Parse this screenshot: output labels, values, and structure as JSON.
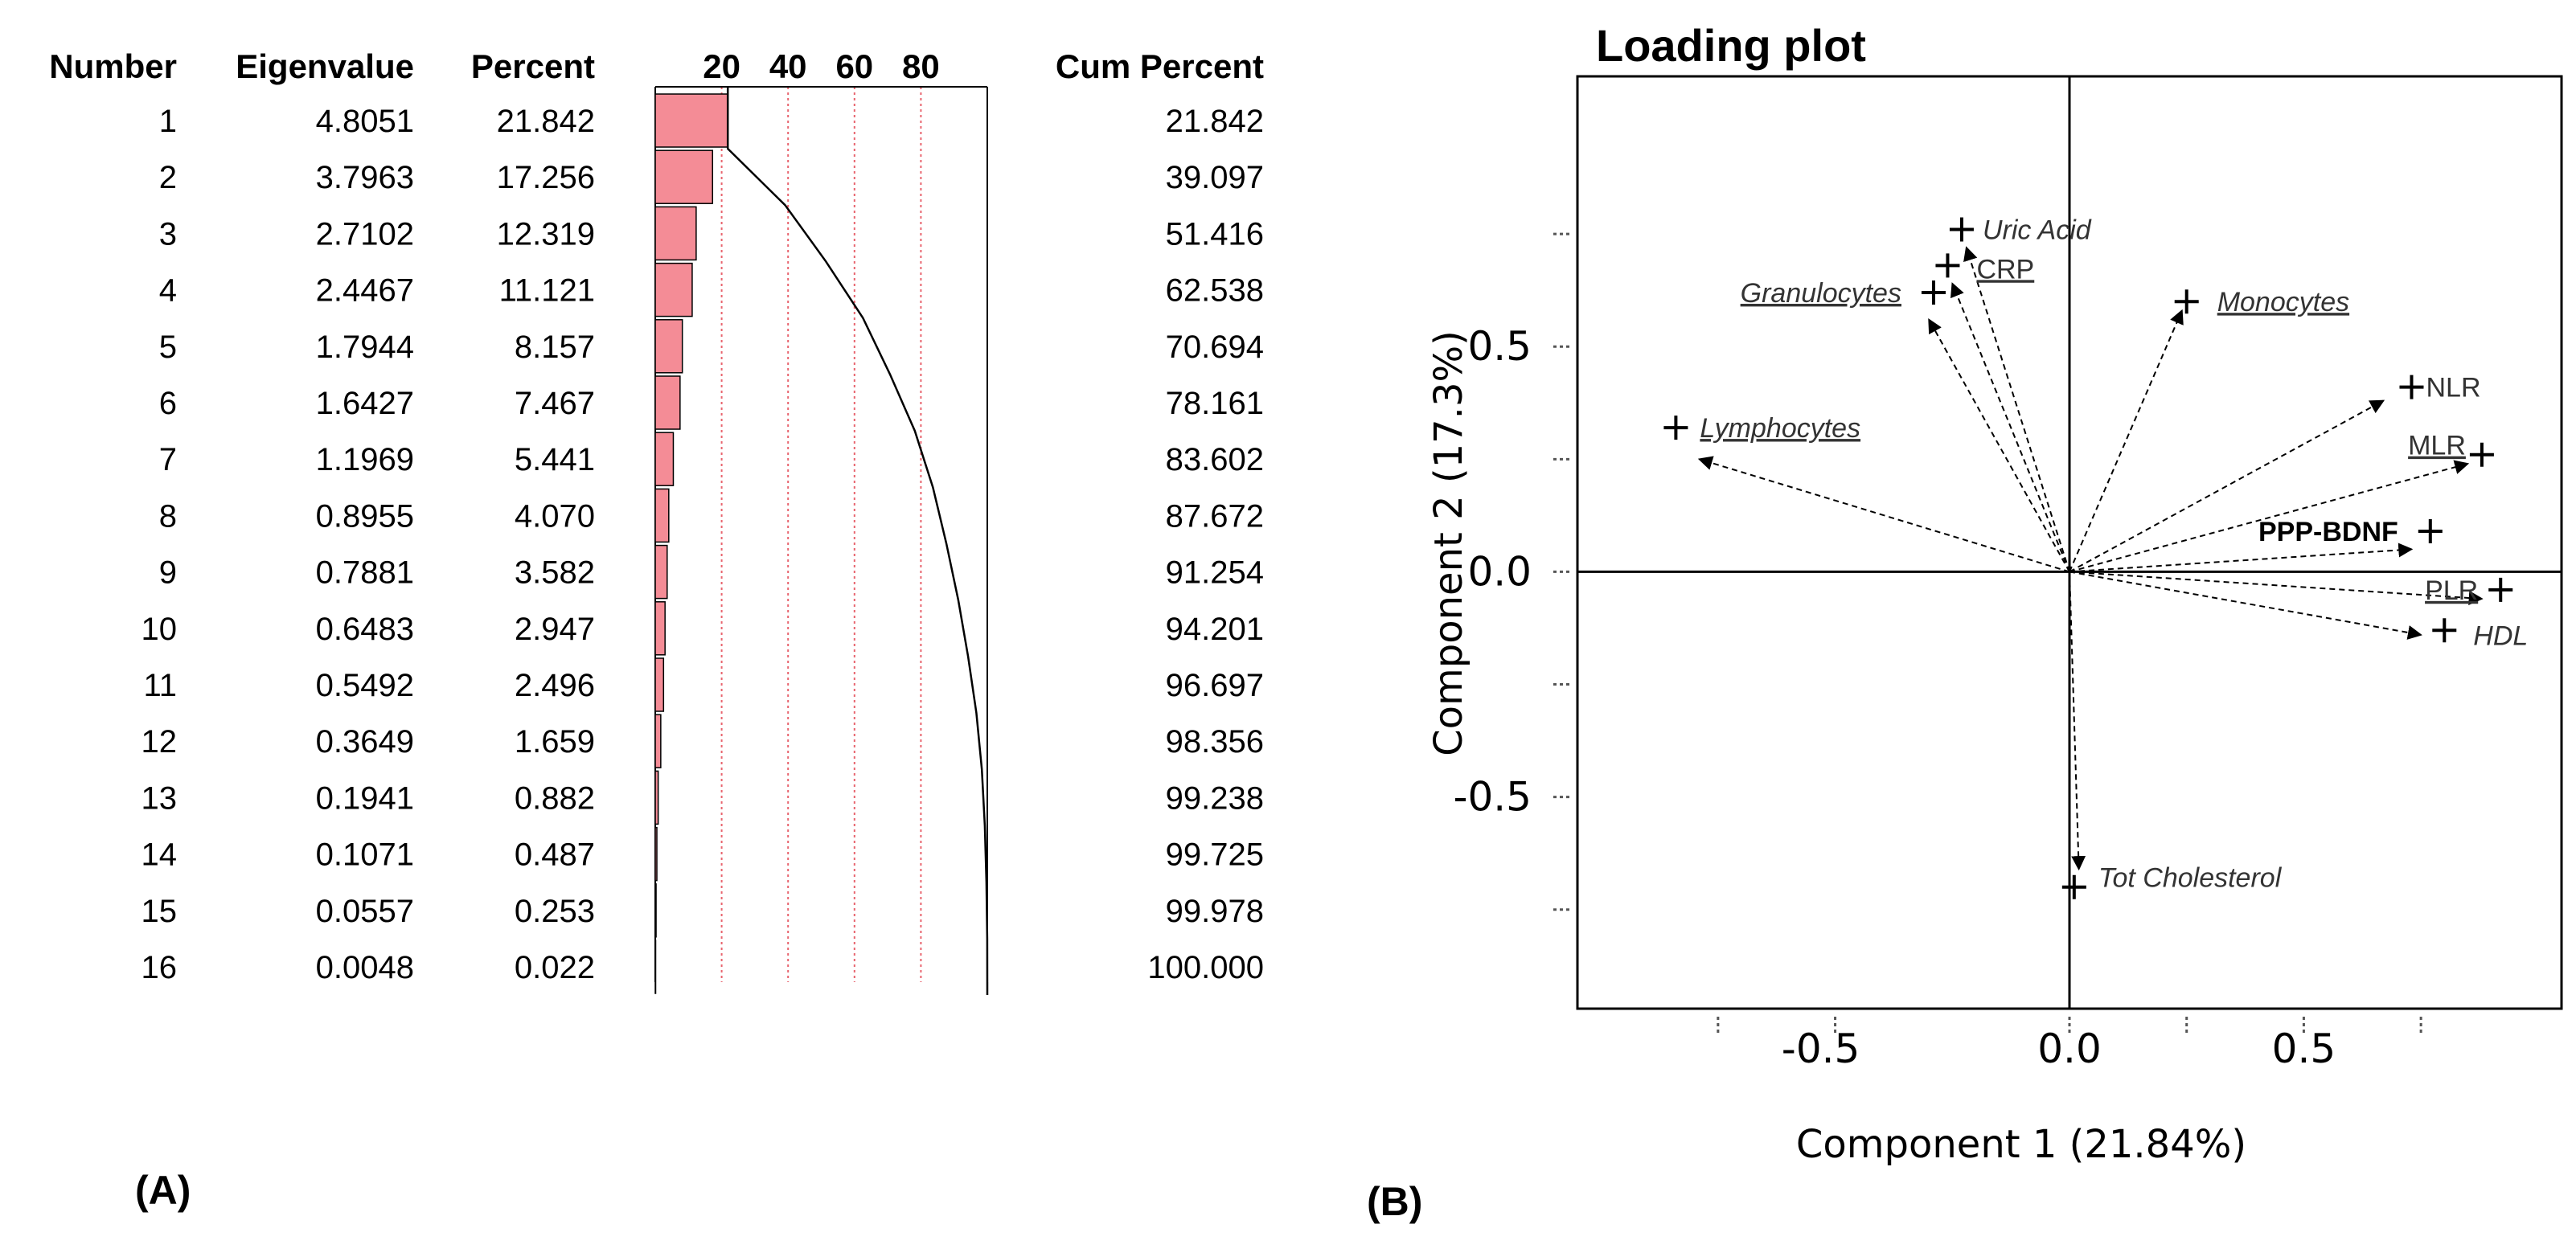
{
  "panel_labels": {
    "a": "(A)",
    "b": "(B)"
  },
  "chart_data": [
    {
      "type": "table",
      "title": "",
      "columns": {
        "number": "Number",
        "eigenvalue": "Eigenvalue",
        "percent": "Percent",
        "cum_percent": "Cum Percent"
      },
      "bar_axis_ticks": [
        "20",
        "40",
        "60",
        "80"
      ],
      "bar_axis_range": [
        0,
        100
      ],
      "rows": [
        {
          "number": "1",
          "eigenvalue": "4.8051",
          "percent": "21.842",
          "cum_percent": "21.842"
        },
        {
          "number": "2",
          "eigenvalue": "3.7963",
          "percent": "17.256",
          "cum_percent": "39.097"
        },
        {
          "number": "3",
          "eigenvalue": "2.7102",
          "percent": "12.319",
          "cum_percent": "51.416"
        },
        {
          "number": "4",
          "eigenvalue": "2.4467",
          "percent": "11.121",
          "cum_percent": "62.538"
        },
        {
          "number": "5",
          "eigenvalue": "1.7944",
          "percent": "8.157",
          "cum_percent": "70.694"
        },
        {
          "number": "6",
          "eigenvalue": "1.6427",
          "percent": "7.467",
          "cum_percent": "78.161"
        },
        {
          "number": "7",
          "eigenvalue": "1.1969",
          "percent": "5.441",
          "cum_percent": "83.602"
        },
        {
          "number": "8",
          "eigenvalue": "0.8955",
          "percent": "4.070",
          "cum_percent": "87.672"
        },
        {
          "number": "9",
          "eigenvalue": "0.7881",
          "percent": "3.582",
          "cum_percent": "91.254"
        },
        {
          "number": "10",
          "eigenvalue": "0.6483",
          "percent": "2.947",
          "cum_percent": "94.201"
        },
        {
          "number": "11",
          "eigenvalue": "0.5492",
          "percent": "2.496",
          "cum_percent": "96.697"
        },
        {
          "number": "12",
          "eigenvalue": "0.3649",
          "percent": "1.659",
          "cum_percent": "98.356"
        },
        {
          "number": "13",
          "eigenvalue": "0.1941",
          "percent": "0.882",
          "cum_percent": "99.238"
        },
        {
          "number": "14",
          "eigenvalue": "0.1071",
          "percent": "0.487",
          "cum_percent": "99.725"
        },
        {
          "number": "15",
          "eigenvalue": "0.0557",
          "percent": "0.253",
          "cum_percent": "99.978"
        },
        {
          "number": "16",
          "eigenvalue": "0.0048",
          "percent": "0.022",
          "cum_percent": "100.000"
        }
      ],
      "bar_color": "#f48c96",
      "grid_color": "#e8646e"
    },
    {
      "type": "scatter",
      "title": "Loading plot",
      "xlabel": "Component 1 (21.84%)",
      "ylabel": "Component 2 (17.3%)",
      "xlim": [
        -1.05,
        1.05
      ],
      "ylim": [
        -0.97,
        1.1
      ],
      "xticks": [
        "-0.5",
        "0.0",
        "0.5"
      ],
      "yticks": [
        "0.5",
        "0.0",
        "-0.5"
      ],
      "xtick_values": [
        -0.5,
        0.0,
        0.5
      ],
      "ytick_values": [
        0.5,
        0.0,
        -0.5
      ],
      "points": [
        {
          "label": "Uric Acid",
          "x": -0.23,
          "y": 0.76,
          "style": "italic"
        },
        {
          "label": "CRP",
          "x": -0.26,
          "y": 0.68,
          "style": "underline"
        },
        {
          "label": "Granulocytes",
          "x": -0.29,
          "y": 0.62,
          "style": "italic-underline"
        },
        {
          "label": "Monocytes",
          "x": 0.25,
          "y": 0.6,
          "style": "italic-underline"
        },
        {
          "label": "NLR",
          "x": 0.73,
          "y": 0.41,
          "style": "normal"
        },
        {
          "label": "Lymphocytes",
          "x": -0.84,
          "y": 0.32,
          "style": "italic-underline"
        },
        {
          "label": "MLR",
          "x": 0.88,
          "y": 0.26,
          "style": "underline"
        },
        {
          "label": "PPP-BDNF",
          "x": 0.77,
          "y": 0.09,
          "style": "bold"
        },
        {
          "label": "PLR",
          "x": 0.92,
          "y": -0.04,
          "style": "underline"
        },
        {
          "label": "HDL",
          "x": 0.8,
          "y": -0.13,
          "style": "italic"
        },
        {
          "label": "Tot Cholesterol",
          "x": 0.01,
          "y": -0.7,
          "style": "italic"
        }
      ],
      "arrow_tips": [
        {
          "x": -0.22,
          "y": 0.72
        },
        {
          "x": -0.25,
          "y": 0.64
        },
        {
          "x": -0.3,
          "y": 0.56
        },
        {
          "x": 0.24,
          "y": 0.58
        },
        {
          "x": 0.67,
          "y": 0.38
        },
        {
          "x": -0.79,
          "y": 0.25
        },
        {
          "x": 0.85,
          "y": 0.24
        },
        {
          "x": 0.73,
          "y": 0.05
        },
        {
          "x": 0.88,
          "y": -0.06
        },
        {
          "x": 0.75,
          "y": -0.14
        },
        {
          "x": 0.02,
          "y": -0.66
        }
      ]
    }
  ]
}
